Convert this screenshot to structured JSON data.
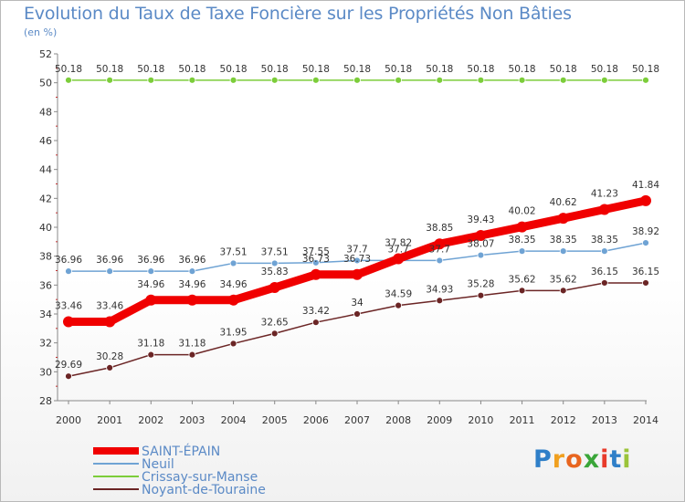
{
  "title": "Evolution du Taux de Taxe Foncière sur les Propriétés Non Bâties",
  "subtitle": "(en %)",
  "logo": {
    "letters": [
      "P",
      "r",
      "o",
      "x",
      "i",
      "t",
      "i"
    ],
    "colors": [
      "#2f7fc8",
      "#f0a020",
      "#e8651f",
      "#3aa639",
      "#e83a2a",
      "#2f7fc8",
      "#9bc43a"
    ]
  },
  "chart_data": {
    "type": "line",
    "x": [
      "2000",
      "2001",
      "2002",
      "2003",
      "2004",
      "2005",
      "2006",
      "2007",
      "2008",
      "2009",
      "2010",
      "2011",
      "2012",
      "2013",
      "2014"
    ],
    "ylim": [
      28,
      52
    ],
    "yticks": [
      28,
      30,
      32,
      34,
      36,
      38,
      40,
      42,
      44,
      46,
      48,
      50,
      52
    ],
    "grid": false,
    "legend_position": "bottom-left",
    "series": [
      {
        "name": "SAINT-ÉPAIN",
        "color": "#f00000",
        "width": 9,
        "marker": 6,
        "values": [
          33.46,
          33.46,
          34.96,
          34.96,
          34.96,
          35.83,
          36.73,
          36.73,
          37.82,
          38.85,
          39.43,
          40.02,
          40.62,
          41.23,
          41.84
        ],
        "labels": [
          "33.46",
          "33.46",
          "34.96",
          "34.96",
          "34.96",
          "35.83",
          "36.73",
          "36.73",
          "37.82",
          "38.85",
          "39.43",
          "40.02",
          "40.62",
          "41.23",
          "41.84"
        ]
      },
      {
        "name": "Neuil",
        "color": "#6fa3d4",
        "width": 1.5,
        "marker": 3.5,
        "values": [
          36.96,
          36.96,
          36.96,
          36.96,
          37.51,
          37.51,
          37.55,
          37.7,
          37.7,
          37.7,
          38.07,
          38.35,
          38.35,
          38.35,
          38.92
        ],
        "labels": [
          "36.96",
          "36.96",
          "36.96",
          "36.96",
          "37.51",
          "37.51",
          "37.55",
          "37.7",
          "37.7",
          "37.7",
          "38.07",
          "38.35",
          "38.35",
          "38.35",
          "38.92"
        ]
      },
      {
        "name": "Crissay-sur-Manse",
        "color": "#7ccd3a",
        "width": 1.5,
        "marker": 3.5,
        "values": [
          50.18,
          50.18,
          50.18,
          50.18,
          50.18,
          50.18,
          50.18,
          50.18,
          50.18,
          50.18,
          50.18,
          50.18,
          50.18,
          50.18,
          50.18
        ],
        "labels": [
          "50.18",
          "50.18",
          "50.18",
          "50.18",
          "50.18",
          "50.18",
          "50.18",
          "50.18",
          "50.18",
          "50.18",
          "50.18",
          "50.18",
          "50.18",
          "50.18",
          "50.18"
        ]
      },
      {
        "name": "Noyant-de-Touraine",
        "color": "#6b2525",
        "width": 1.5,
        "marker": 3.5,
        "values": [
          29.69,
          30.28,
          31.18,
          31.18,
          31.95,
          32.65,
          33.42,
          34,
          34.59,
          34.93,
          35.28,
          35.62,
          35.62,
          36.15,
          36.15
        ],
        "labels": [
          "29.69",
          "30.28",
          "31.18",
          "31.18",
          "31.95",
          "32.65",
          "33.42",
          "34",
          "34.59",
          "34.93",
          "35.28",
          "35.62",
          "35.62",
          "36.15",
          "36.15"
        ]
      }
    ]
  }
}
